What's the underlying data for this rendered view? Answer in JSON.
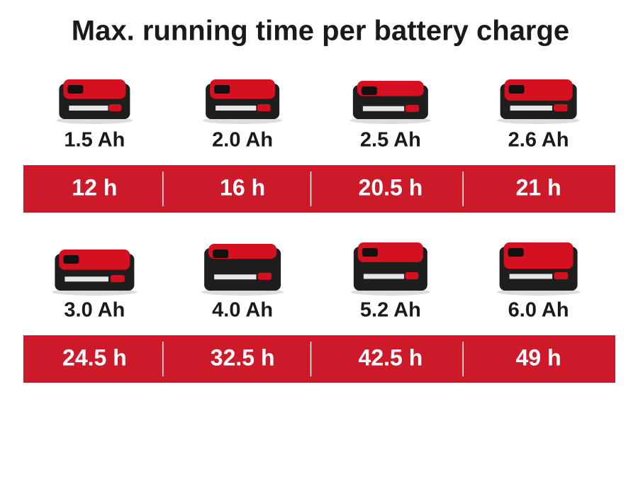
{
  "title": "Max. running time per battery charge",
  "rows": [
    {
      "items": [
        {
          "capacity": "1.5 Ah",
          "runtime": "12 h"
        },
        {
          "capacity": "2.0 Ah",
          "runtime": "16 h"
        },
        {
          "capacity": "2.5 Ah",
          "runtime": "20.5 h"
        },
        {
          "capacity": "2.6 Ah",
          "runtime": "21 h"
        }
      ]
    },
    {
      "items": [
        {
          "capacity": "3.0 Ah",
          "runtime": "24.5 h"
        },
        {
          "capacity": "4.0 Ah",
          "runtime": "32.5 h"
        },
        {
          "capacity": "5.2 Ah",
          "runtime": "42.5 h"
        },
        {
          "capacity": "6.0 Ah",
          "runtime": "49 h"
        }
      ]
    }
  ]
}
